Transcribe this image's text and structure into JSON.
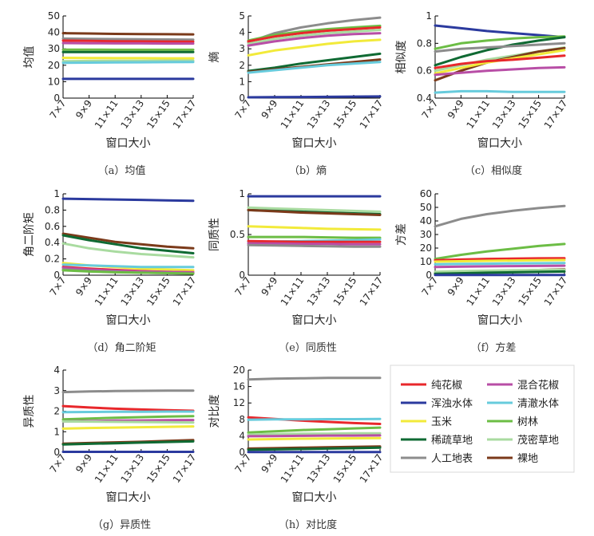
{
  "x_ticks": [
    "7×7",
    "9×9",
    "11×11",
    "13×13",
    "15×15",
    "17×17"
  ],
  "legend": [
    {
      "key": "chunhuajiao",
      "name": "纯花椒",
      "color": "#e8272b"
    },
    {
      "key": "hunhe",
      "name": "混合花椒",
      "color": "#b84ea6"
    },
    {
      "key": "hunzhuo",
      "name": "浑浊水体",
      "color": "#2b3a9e"
    },
    {
      "key": "qingche",
      "name": "清澈水体",
      "color": "#67cbdc"
    },
    {
      "key": "yumi",
      "name": "玉米",
      "color": "#f2ea3a"
    },
    {
      "key": "shulin",
      "name": "树林",
      "color": "#6cbd45"
    },
    {
      "key": "xishu",
      "name": "稀疏草地",
      "color": "#0f6a33"
    },
    {
      "key": "maomi",
      "name": "茂密草地",
      "color": "#a9dba0"
    },
    {
      "key": "rengong",
      "name": "人工地表",
      "color": "#8c8c8c"
    },
    {
      "key": "luodi",
      "name": "裸地",
      "color": "#7b3a1a"
    }
  ],
  "chart_data": [
    {
      "id": "a",
      "type": "line",
      "caption": "（a）均值",
      "ylabel": "均值",
      "xlabel": "窗口大小",
      "ylim": [
        0,
        50
      ],
      "yticks": [
        0,
        10,
        20,
        30,
        40,
        50
      ],
      "series": [
        {
          "key": "luodi",
          "values": [
            39.5,
            39.3,
            39.1,
            39,
            38.9,
            38.8
          ]
        },
        {
          "key": "rengong",
          "values": [
            36.2,
            36,
            35.9,
            35.8,
            35.7,
            35.6
          ]
        },
        {
          "key": "chunhuajiao",
          "values": [
            35,
            34.8,
            34.6,
            34.5,
            34.4,
            34.3
          ]
        },
        {
          "key": "hunhe",
          "values": [
            33.5,
            33.4,
            33.3,
            33.3,
            33.2,
            33.2
          ]
        },
        {
          "key": "shulin",
          "values": [
            29.5,
            29.5,
            29.4,
            29.4,
            29.4,
            29.4
          ]
        },
        {
          "key": "xishu",
          "values": [
            28,
            28,
            28,
            28,
            28,
            28
          ]
        },
        {
          "key": "yumi",
          "values": [
            24.5,
            24.4,
            24.3,
            24.3,
            24.2,
            24.2
          ]
        },
        {
          "key": "maomi",
          "values": [
            22.5,
            22.6,
            22.7,
            22.7,
            22.8,
            22.8
          ]
        },
        {
          "key": "qingche",
          "values": [
            21.5,
            21.6,
            21.7,
            21.8,
            21.9,
            22
          ]
        },
        {
          "key": "hunzhuo",
          "values": [
            11.7,
            11.7,
            11.7,
            11.7,
            11.7,
            11.7
          ]
        }
      ]
    },
    {
      "id": "b",
      "type": "line",
      "caption": "（b）熵",
      "ylabel": "熵",
      "xlabel": "窗口大小",
      "ylim": [
        0,
        5
      ],
      "yticks": [
        0,
        1,
        2,
        3,
        4,
        5
      ],
      "series": [
        {
          "key": "rengong",
          "values": [
            3.4,
            3.95,
            4.3,
            4.55,
            4.75,
            4.9
          ]
        },
        {
          "key": "shulin",
          "values": [
            3.5,
            3.85,
            4.05,
            4.2,
            4.3,
            4.4
          ]
        },
        {
          "key": "chunhuajiao",
          "values": [
            3.45,
            3.75,
            3.95,
            4.1,
            4.2,
            4.3
          ]
        },
        {
          "key": "maomi",
          "values": [
            3.3,
            3.6,
            3.8,
            3.95,
            4.05,
            4.15
          ]
        },
        {
          "key": "hunhe",
          "values": [
            3.2,
            3.45,
            3.65,
            3.8,
            3.9,
            3.95
          ]
        },
        {
          "key": "yumi",
          "values": [
            2.6,
            2.9,
            3.1,
            3.3,
            3.45,
            3.55
          ]
        },
        {
          "key": "xishu",
          "values": [
            1.65,
            1.85,
            2.1,
            2.3,
            2.5,
            2.7
          ]
        },
        {
          "key": "luodi",
          "values": [
            1.6,
            1.75,
            1.9,
            2.05,
            2.2,
            2.35
          ]
        },
        {
          "key": "qingche",
          "values": [
            1.55,
            1.7,
            1.85,
            2,
            2.1,
            2.2
          ]
        },
        {
          "key": "hunzhuo",
          "values": [
            0.05,
            0.06,
            0.07,
            0.08,
            0.09,
            0.1
          ]
        }
      ]
    },
    {
      "id": "c",
      "type": "line",
      "caption": "（c）相似度",
      "ylabel": "相似度",
      "xlabel": "窗口大小",
      "ylim": [
        0.4,
        1
      ],
      "yticks": [
        0.4,
        0.6,
        0.8,
        1
      ],
      "series": [
        {
          "key": "hunzhuo",
          "values": [
            0.93,
            0.91,
            0.89,
            0.875,
            0.86,
            0.845
          ]
        },
        {
          "key": "shulin",
          "values": [
            0.76,
            0.8,
            0.82,
            0.835,
            0.845,
            0.85
          ]
        },
        {
          "key": "xishu",
          "values": [
            0.64,
            0.7,
            0.75,
            0.79,
            0.82,
            0.845
          ]
        },
        {
          "key": "rengong",
          "values": [
            0.74,
            0.76,
            0.77,
            0.78,
            0.79,
            0.8
          ]
        },
        {
          "key": "maomi",
          "values": [
            0.6,
            0.64,
            0.68,
            0.71,
            0.74,
            0.77
          ]
        },
        {
          "key": "luodi",
          "values": [
            0.53,
            0.6,
            0.66,
            0.7,
            0.74,
            0.765
          ]
        },
        {
          "key": "yumi",
          "values": [
            0.58,
            0.62,
            0.66,
            0.69,
            0.72,
            0.75
          ]
        },
        {
          "key": "chunhuajiao",
          "values": [
            0.62,
            0.65,
            0.67,
            0.68,
            0.695,
            0.71
          ]
        },
        {
          "key": "hunhe",
          "values": [
            0.57,
            0.585,
            0.6,
            0.61,
            0.62,
            0.625
          ]
        },
        {
          "key": "qingche",
          "values": [
            0.44,
            0.45,
            0.45,
            0.445,
            0.445,
            0.445
          ]
        }
      ]
    },
    {
      "id": "d",
      "type": "line",
      "caption": "（d）角二阶矩",
      "ylabel": "角二阶矩",
      "xlabel": "窗口大小",
      "ylim": [
        0,
        1
      ],
      "yticks": [
        0,
        0.2,
        0.4,
        0.6,
        0.8,
        1
      ],
      "series": [
        {
          "key": "hunzhuo",
          "values": [
            0.94,
            0.935,
            0.93,
            0.925,
            0.92,
            0.915
          ]
        },
        {
          "key": "luodi",
          "values": [
            0.51,
            0.46,
            0.41,
            0.38,
            0.35,
            0.33
          ]
        },
        {
          "key": "xishu",
          "values": [
            0.49,
            0.43,
            0.38,
            0.33,
            0.3,
            0.27
          ]
        },
        {
          "key": "maomi",
          "values": [
            0.39,
            0.33,
            0.29,
            0.26,
            0.24,
            0.22
          ]
        },
        {
          "key": "yumi",
          "values": [
            0.15,
            0.12,
            0.1,
            0.08,
            0.07,
            0.06
          ]
        },
        {
          "key": "qingche",
          "values": [
            0.13,
            0.12,
            0.11,
            0.1,
            0.1,
            0.1
          ]
        },
        {
          "key": "chunhuajiao",
          "values": [
            0.1,
            0.08,
            0.065,
            0.05,
            0.04,
            0.035
          ]
        },
        {
          "key": "hunhe",
          "values": [
            0.09,
            0.07,
            0.055,
            0.045,
            0.04,
            0.035
          ]
        },
        {
          "key": "rengong",
          "values": [
            0.07,
            0.05,
            0.04,
            0.03,
            0.025,
            0.02
          ]
        },
        {
          "key": "shulin",
          "values": [
            0.06,
            0.045,
            0.035,
            0.03,
            0.025,
            0.02
          ]
        }
      ]
    },
    {
      "id": "e",
      "type": "line",
      "caption": "（e）同质性",
      "ylabel": "同质性",
      "xlabel": "窗口大小",
      "ylim": [
        0,
        1
      ],
      "yticks": [
        0,
        0.5,
        1
      ],
      "series": [
        {
          "key": "hunzhuo",
          "values": [
            0.97,
            0.97,
            0.97,
            0.97,
            0.97,
            0.97
          ]
        },
        {
          "key": "maomi",
          "values": [
            0.83,
            0.82,
            0.81,
            0.8,
            0.79,
            0.78
          ]
        },
        {
          "key": "xishu",
          "values": [
            0.8,
            0.79,
            0.78,
            0.77,
            0.76,
            0.75
          ]
        },
        {
          "key": "luodi",
          "values": [
            0.8,
            0.785,
            0.77,
            0.76,
            0.75,
            0.74
          ]
        },
        {
          "key": "yumi",
          "values": [
            0.6,
            0.59,
            0.58,
            0.57,
            0.565,
            0.56
          ]
        },
        {
          "key": "shulin",
          "values": [
            0.47,
            0.47,
            0.47,
            0.465,
            0.46,
            0.46
          ]
        },
        {
          "key": "qingche",
          "values": [
            0.41,
            0.415,
            0.42,
            0.425,
            0.43,
            0.44
          ]
        },
        {
          "key": "chunhuajiao",
          "values": [
            0.42,
            0.415,
            0.41,
            0.41,
            0.41,
            0.41
          ]
        },
        {
          "key": "hunhe",
          "values": [
            0.39,
            0.39,
            0.385,
            0.385,
            0.38,
            0.38
          ]
        },
        {
          "key": "rengong",
          "values": [
            0.37,
            0.365,
            0.36,
            0.355,
            0.35,
            0.35
          ]
        }
      ]
    },
    {
      "id": "f",
      "type": "line",
      "caption": "（f）方差",
      "ylabel": "方差",
      "xlabel": "窗口大小",
      "ylim": [
        0,
        60
      ],
      "yticks": [
        0,
        10,
        20,
        30,
        40,
        50,
        60
      ],
      "series": [
        {
          "key": "rengong",
          "values": [
            36,
            41.5,
            45,
            47.5,
            49.5,
            51
          ]
        },
        {
          "key": "shulin",
          "values": [
            12,
            15,
            17.5,
            19.5,
            21.5,
            23
          ]
        },
        {
          "key": "chunhuajiao",
          "values": [
            11,
            11.5,
            12,
            12.2,
            12.4,
            12.5
          ]
        },
        {
          "key": "yumi",
          "values": [
            10,
            10.3,
            10.6,
            10.8,
            11,
            11.2
          ]
        },
        {
          "key": "qingche",
          "values": [
            8,
            8.3,
            8.5,
            8.7,
            8.8,
            9
          ]
        },
        {
          "key": "hunhe",
          "values": [
            6,
            6.3,
            6.5,
            6.7,
            6.8,
            7
          ]
        },
        {
          "key": "luodi",
          "values": [
            1.5,
            2,
            2.6,
            3.2,
            3.8,
            4.3
          ]
        },
        {
          "key": "maomi",
          "values": [
            2.5,
            3,
            3.3,
            3.6,
            3.8,
            4
          ]
        },
        {
          "key": "xishu",
          "values": [
            1,
            1.4,
            1.8,
            2.1,
            2.4,
            2.7
          ]
        },
        {
          "key": "hunzhuo",
          "values": [
            0.2,
            0.2,
            0.2,
            0.2,
            0.2,
            0.2
          ]
        }
      ]
    },
    {
      "id": "g",
      "type": "line",
      "caption": "（g）异质性",
      "ylabel": "异质性",
      "xlabel": "窗口大小",
      "ylim": [
        0,
        4
      ],
      "yticks": [
        0,
        1,
        2,
        3,
        4
      ],
      "series": [
        {
          "key": "rengong",
          "values": [
            2.93,
            2.96,
            2.98,
            2.99,
            3,
            3
          ]
        },
        {
          "key": "chunhuajiao",
          "values": [
            2.25,
            2.18,
            2.12,
            2.08,
            2.05,
            2.02
          ]
        },
        {
          "key": "qingche",
          "values": [
            1.95,
            1.96,
            1.97,
            1.97,
            1.98,
            1.98
          ]
        },
        {
          "key": "shulin",
          "values": [
            1.6,
            1.64,
            1.68,
            1.71,
            1.74,
            1.76
          ]
        },
        {
          "key": "hunhe",
          "values": [
            1.5,
            1.52,
            1.54,
            1.55,
            1.56,
            1.57
          ]
        },
        {
          "key": "maomi",
          "values": [
            1.5,
            1.49,
            1.48,
            1.47,
            1.46,
            1.45
          ]
        },
        {
          "key": "yumi",
          "values": [
            1.15,
            1.18,
            1.2,
            1.22,
            1.24,
            1.26
          ]
        },
        {
          "key": "luodi",
          "values": [
            0.42,
            0.45,
            0.48,
            0.51,
            0.55,
            0.59
          ]
        },
        {
          "key": "xishu",
          "values": [
            0.38,
            0.41,
            0.44,
            0.47,
            0.5,
            0.53
          ]
        },
        {
          "key": "hunzhuo",
          "values": [
            0.02,
            0.02,
            0.02,
            0.02,
            0.02,
            0.02
          ]
        }
      ]
    },
    {
      "id": "h",
      "type": "line",
      "caption": "（h）对比度",
      "ylabel": "对比度",
      "xlabel": "窗口大小",
      "ylim": [
        0,
        20
      ],
      "yticks": [
        0,
        4,
        8,
        12,
        16,
        20
      ],
      "series": [
        {
          "key": "rengong",
          "values": [
            17.7,
            17.9,
            18,
            18.1,
            18.1,
            18.1
          ]
        },
        {
          "key": "chunhuajiao",
          "values": [
            8.5,
            8.1,
            7.7,
            7.4,
            7.1,
            6.9
          ]
        },
        {
          "key": "qingche",
          "values": [
            7.9,
            8,
            8,
            8.05,
            8.05,
            8.1
          ]
        },
        {
          "key": "shulin",
          "values": [
            4.8,
            5.1,
            5.4,
            5.6,
            5.8,
            6
          ]
        },
        {
          "key": "maomi",
          "values": [
            4.3,
            4.4,
            4.5,
            4.5,
            4.6,
            4.6
          ]
        },
        {
          "key": "hunhe",
          "values": [
            3.9,
            3.95,
            4,
            4.05,
            4.05,
            4.1
          ]
        },
        {
          "key": "yumi",
          "values": [
            3.1,
            3.2,
            3.3,
            3.35,
            3.4,
            3.45
          ]
        },
        {
          "key": "luodi",
          "values": [
            0.9,
            1,
            1.1,
            1.2,
            1.3,
            1.4
          ]
        },
        {
          "key": "xishu",
          "values": [
            0.6,
            0.7,
            0.8,
            0.9,
            1,
            1.1
          ]
        },
        {
          "key": "hunzhuo",
          "values": [
            0.05,
            0.05,
            0.05,
            0.05,
            0.05,
            0.05
          ]
        }
      ]
    }
  ]
}
